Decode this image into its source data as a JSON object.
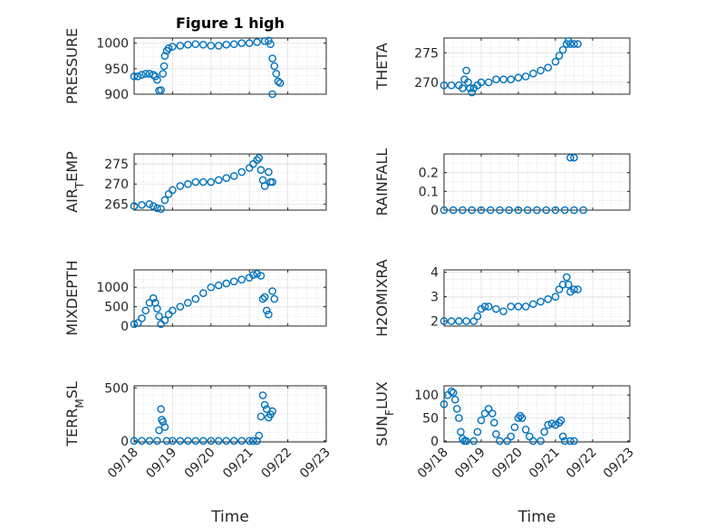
{
  "figure": {
    "title": "Figure 1 high",
    "marker_color": "#0072BD",
    "axis_color": "#262626",
    "grid_color": "#d9d9d9"
  },
  "chart_data": [
    {
      "type": "scatter",
      "title": "Figure 1 high",
      "ylabel": "PRESSURE",
      "xlabel": "",
      "x_ticks": [
        "09/18",
        "09/19",
        "09/20",
        "09/21",
        "09/22",
        "09/23"
      ],
      "x_ticks_shown": false,
      "xlim": [
        0,
        5
      ],
      "ylim": [
        900,
        1010
      ],
      "yticks": [
        900,
        950,
        1000
      ],
      "ytick_labels": [
        "900",
        "950",
        "1000"
      ],
      "points": [
        [
          0,
          935
        ],
        [
          0.1,
          935
        ],
        [
          0.2,
          938
        ],
        [
          0.3,
          940
        ],
        [
          0.4,
          940
        ],
        [
          0.5,
          938
        ],
        [
          0.55,
          935
        ],
        [
          0.6,
          928
        ],
        [
          0.65,
          907
        ],
        [
          0.7,
          908
        ],
        [
          0.75,
          940
        ],
        [
          0.78,
          955
        ],
        [
          0.8,
          975
        ],
        [
          0.85,
          985
        ],
        [
          0.9,
          990
        ],
        [
          1.0,
          993
        ],
        [
          1.2,
          995
        ],
        [
          1.4,
          997
        ],
        [
          1.6,
          998
        ],
        [
          1.8,
          997
        ],
        [
          2.0,
          995
        ],
        [
          2.2,
          995
        ],
        [
          2.4,
          997
        ],
        [
          2.6,
          998
        ],
        [
          2.8,
          1000
        ],
        [
          3.0,
          1000
        ],
        [
          3.2,
          1002
        ],
        [
          3.4,
          1004
        ],
        [
          3.5,
          1005
        ],
        [
          3.55,
          998
        ],
        [
          3.6,
          970
        ],
        [
          3.65,
          955
        ],
        [
          3.7,
          940
        ],
        [
          3.75,
          925
        ],
        [
          3.6,
          900
        ],
        [
          3.8,
          922
        ]
      ]
    },
    {
      "type": "scatter",
      "title": "",
      "ylabel": "THETA",
      "xlabel": "",
      "x_ticks": [
        "09/18",
        "09/19",
        "09/20",
        "09/21",
        "09/22",
        "09/23"
      ],
      "x_ticks_shown": false,
      "xlim": [
        0,
        5
      ],
      "ylim": [
        268,
        277.5
      ],
      "yticks": [
        270,
        275
      ],
      "ytick_labels": [
        "270",
        "275"
      ],
      "points": [
        [
          0,
          269.5
        ],
        [
          0.2,
          269.5
        ],
        [
          0.4,
          269.5
        ],
        [
          0.5,
          269.0
        ],
        [
          0.55,
          270.5
        ],
        [
          0.6,
          272.0
        ],
        [
          0.65,
          270.0
        ],
        [
          0.7,
          269.0
        ],
        [
          0.75,
          268.3
        ],
        [
          0.8,
          269.0
        ],
        [
          0.9,
          269.5
        ],
        [
          1.0,
          270.0
        ],
        [
          1.2,
          270.0
        ],
        [
          1.4,
          270.5
        ],
        [
          1.6,
          270.5
        ],
        [
          1.8,
          270.5
        ],
        [
          2.0,
          270.8
        ],
        [
          2.2,
          271.0
        ],
        [
          2.4,
          271.5
        ],
        [
          2.6,
          272.0
        ],
        [
          2.8,
          272.5
        ],
        [
          3.0,
          273.5
        ],
        [
          3.1,
          274.5
        ],
        [
          3.2,
          275.5
        ],
        [
          3.3,
          276.5
        ],
        [
          3.35,
          277.0
        ],
        [
          3.4,
          276.5
        ],
        [
          3.5,
          276.5
        ],
        [
          3.6,
          276.5
        ]
      ]
    },
    {
      "type": "scatter",
      "title": "",
      "ylabel": "AIR_TEMP",
      "xlabel": "",
      "x_ticks": [
        "09/18",
        "09/19",
        "09/20",
        "09/21",
        "09/22",
        "09/23"
      ],
      "x_ticks_shown": false,
      "xlim": [
        0,
        5
      ],
      "ylim": [
        263.5,
        277.5
      ],
      "yticks": [
        265,
        270,
        275
      ],
      "ytick_labels": [
        "265",
        "270",
        "275"
      ],
      "points": [
        [
          0,
          264.5
        ],
        [
          0.2,
          264.8
        ],
        [
          0.4,
          265.0
        ],
        [
          0.5,
          264.5
        ],
        [
          0.6,
          264.0
        ],
        [
          0.7,
          263.8
        ],
        [
          0.8,
          266.0
        ],
        [
          0.9,
          267.5
        ],
        [
          1.0,
          268.5
        ],
        [
          1.2,
          269.5
        ],
        [
          1.4,
          270.0
        ],
        [
          1.6,
          270.5
        ],
        [
          1.8,
          270.5
        ],
        [
          2.0,
          270.5
        ],
        [
          2.2,
          271.0
        ],
        [
          2.4,
          271.5
        ],
        [
          2.6,
          272.0
        ],
        [
          2.8,
          273.0
        ],
        [
          3.0,
          274.0
        ],
        [
          3.1,
          275.0
        ],
        [
          3.2,
          276.0
        ],
        [
          3.25,
          276.5
        ],
        [
          3.3,
          273.5
        ],
        [
          3.35,
          271.0
        ],
        [
          3.4,
          269.5
        ],
        [
          3.5,
          273.0
        ],
        [
          3.55,
          270.5
        ],
        [
          3.6,
          270.5
        ]
      ]
    },
    {
      "type": "scatter",
      "title": "",
      "ylabel": "RAINFALL",
      "xlabel": "",
      "x_ticks": [
        "09/18",
        "09/19",
        "09/20",
        "09/21",
        "09/22",
        "09/23"
      ],
      "x_ticks_shown": false,
      "xlim": [
        0,
        5
      ],
      "ylim": [
        0,
        0.3
      ],
      "yticks": [
        0,
        0.1,
        0.2
      ],
      "ytick_labels": [
        "0",
        "0.1",
        "0.2"
      ],
      "points": [
        [
          0,
          0
        ],
        [
          0.25,
          0
        ],
        [
          0.5,
          0
        ],
        [
          0.75,
          0
        ],
        [
          1.0,
          0
        ],
        [
          1.25,
          0
        ],
        [
          1.5,
          0
        ],
        [
          1.75,
          0
        ],
        [
          2.0,
          0
        ],
        [
          2.25,
          0
        ],
        [
          2.5,
          0
        ],
        [
          2.75,
          0
        ],
        [
          3.0,
          0
        ],
        [
          3.25,
          0
        ],
        [
          3.5,
          0
        ],
        [
          3.75,
          0
        ],
        [
          3.4,
          0.28
        ],
        [
          3.5,
          0.28
        ]
      ]
    },
    {
      "type": "scatter",
      "title": "",
      "ylabel": "MIXDEPTH",
      "xlabel": "",
      "x_ticks": [
        "09/18",
        "09/19",
        "09/20",
        "09/21",
        "09/22",
        "09/23"
      ],
      "x_ticks_shown": false,
      "xlim": [
        0,
        5
      ],
      "ylim": [
        0,
        1450
      ],
      "yticks": [
        0,
        500,
        1000
      ],
      "ytick_labels": [
        "0",
        "500",
        "1000"
      ],
      "points": [
        [
          0,
          50
        ],
        [
          0.1,
          80
        ],
        [
          0.2,
          200
        ],
        [
          0.3,
          400
        ],
        [
          0.4,
          600
        ],
        [
          0.5,
          720
        ],
        [
          0.55,
          600
        ],
        [
          0.6,
          450
        ],
        [
          0.65,
          250
        ],
        [
          0.7,
          50
        ],
        [
          0.8,
          150
        ],
        [
          0.9,
          300
        ],
        [
          1.0,
          400
        ],
        [
          1.2,
          500
        ],
        [
          1.4,
          600
        ],
        [
          1.6,
          700
        ],
        [
          1.8,
          850
        ],
        [
          2.0,
          1000
        ],
        [
          2.2,
          1050
        ],
        [
          2.4,
          1100
        ],
        [
          2.6,
          1150
        ],
        [
          2.8,
          1200
        ],
        [
          3.0,
          1250
        ],
        [
          3.1,
          1320
        ],
        [
          3.2,
          1350
        ],
        [
          3.3,
          1300
        ],
        [
          3.35,
          700
        ],
        [
          3.4,
          750
        ],
        [
          3.45,
          400
        ],
        [
          3.5,
          300
        ],
        [
          3.6,
          900
        ],
        [
          3.65,
          700
        ]
      ]
    },
    {
      "type": "scatter",
      "title": "",
      "ylabel": "H2OMIXRA",
      "xlabel": "",
      "x_ticks": [
        "09/18",
        "09/19",
        "09/20",
        "09/21",
        "09/22",
        "09/23"
      ],
      "x_ticks_shown": false,
      "xlim": [
        0,
        5
      ],
      "ylim": [
        1.8,
        4.1
      ],
      "yticks": [
        2,
        3,
        4
      ],
      "ytick_labels": [
        "2",
        "3",
        "4"
      ],
      "points": [
        [
          0,
          2.0
        ],
        [
          0.2,
          2.0
        ],
        [
          0.4,
          2.0
        ],
        [
          0.6,
          2.0
        ],
        [
          0.8,
          2.0
        ],
        [
          0.9,
          2.2
        ],
        [
          1.0,
          2.5
        ],
        [
          1.1,
          2.6
        ],
        [
          1.2,
          2.6
        ],
        [
          1.4,
          2.5
        ],
        [
          1.6,
          2.4
        ],
        [
          1.8,
          2.6
        ],
        [
          2.0,
          2.6
        ],
        [
          2.2,
          2.6
        ],
        [
          2.4,
          2.7
        ],
        [
          2.6,
          2.8
        ],
        [
          2.8,
          2.9
        ],
        [
          3.0,
          3.0
        ],
        [
          3.1,
          3.3
        ],
        [
          3.2,
          3.5
        ],
        [
          3.3,
          3.8
        ],
        [
          3.35,
          3.5
        ],
        [
          3.4,
          3.2
        ],
        [
          3.5,
          3.3
        ],
        [
          3.6,
          3.3
        ]
      ]
    },
    {
      "type": "scatter",
      "title": "",
      "ylabel": "TERR_MSL",
      "xlabel": "Time",
      "x_ticks": [
        "09/18",
        "09/19",
        "09/20",
        "09/21",
        "09/22",
        "09/23"
      ],
      "x_ticks_shown": true,
      "xlim": [
        0,
        5
      ],
      "ylim": [
        -10,
        520
      ],
      "yticks": [
        0,
        500
      ],
      "ytick_labels": [
        "0",
        "500"
      ],
      "points": [
        [
          0,
          0
        ],
        [
          0.2,
          0
        ],
        [
          0.4,
          0
        ],
        [
          0.6,
          0
        ],
        [
          0.65,
          100
        ],
        [
          0.7,
          300
        ],
        [
          0.72,
          200
        ],
        [
          0.75,
          180
        ],
        [
          0.8,
          130
        ],
        [
          0.85,
          0
        ],
        [
          1.0,
          0
        ],
        [
          1.2,
          0
        ],
        [
          1.4,
          0
        ],
        [
          1.6,
          0
        ],
        [
          1.8,
          0
        ],
        [
          2.0,
          0
        ],
        [
          2.2,
          0
        ],
        [
          2.4,
          0
        ],
        [
          2.6,
          0
        ],
        [
          2.8,
          0
        ],
        [
          3.0,
          0
        ],
        [
          3.1,
          0
        ],
        [
          3.2,
          0
        ],
        [
          3.25,
          50
        ],
        [
          3.3,
          230
        ],
        [
          3.35,
          430
        ],
        [
          3.4,
          340
        ],
        [
          3.45,
          300
        ],
        [
          3.5,
          220
        ],
        [
          3.55,
          250
        ],
        [
          3.6,
          280
        ]
      ]
    },
    {
      "type": "scatter",
      "title": "",
      "ylabel": "SUN_FLUX",
      "xlabel": "Time",
      "x_ticks": [
        "09/18",
        "09/19",
        "09/20",
        "09/21",
        "09/22",
        "09/23"
      ],
      "x_ticks_shown": true,
      "xlim": [
        0,
        5
      ],
      "ylim": [
        -2,
        120
      ],
      "yticks": [
        0,
        50,
        100
      ],
      "ytick_labels": [
        "0",
        "50",
        "100"
      ],
      "points": [
        [
          0,
          80
        ],
        [
          0.1,
          100
        ],
        [
          0.2,
          108
        ],
        [
          0.25,
          105
        ],
        [
          0.3,
          90
        ],
        [
          0.35,
          70
        ],
        [
          0.4,
          50
        ],
        [
          0.45,
          20
        ],
        [
          0.5,
          5
        ],
        [
          0.55,
          0
        ],
        [
          0.6,
          0
        ],
        [
          0.8,
          0
        ],
        [
          0.9,
          20
        ],
        [
          1.0,
          45
        ],
        [
          1.1,
          60
        ],
        [
          1.2,
          70
        ],
        [
          1.3,
          60
        ],
        [
          1.35,
          40
        ],
        [
          1.4,
          15
        ],
        [
          1.5,
          0
        ],
        [
          1.7,
          0
        ],
        [
          1.8,
          10
        ],
        [
          1.9,
          30
        ],
        [
          2.0,
          50
        ],
        [
          2.05,
          55
        ],
        [
          2.1,
          50
        ],
        [
          2.2,
          25
        ],
        [
          2.3,
          10
        ],
        [
          2.4,
          0
        ],
        [
          2.6,
          0
        ],
        [
          2.7,
          20
        ],
        [
          2.8,
          35
        ],
        [
          2.9,
          38
        ],
        [
          3.0,
          35
        ],
        [
          3.1,
          40
        ],
        [
          3.15,
          45
        ],
        [
          3.2,
          10
        ],
        [
          3.25,
          0
        ],
        [
          3.4,
          0
        ],
        [
          3.5,
          0
        ]
      ]
    }
  ]
}
